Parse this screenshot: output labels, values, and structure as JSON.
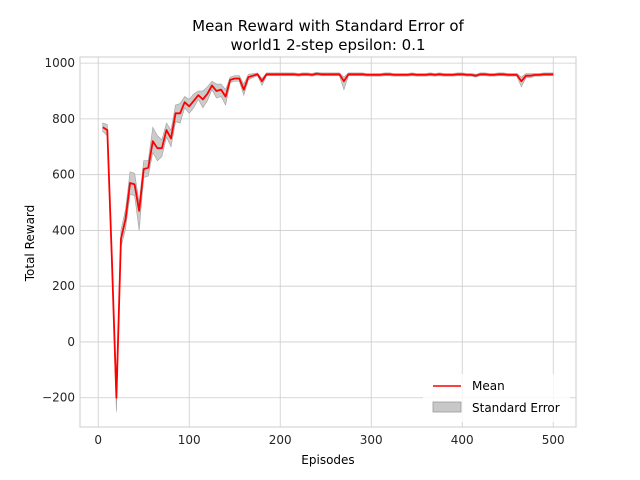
{
  "chart_data": {
    "type": "line",
    "title_line1": "Mean Reward with Standard Error of",
    "title_line2": "world1 2-step epsilon: 0.1",
    "xlabel": "Episodes",
    "ylabel": "Total Reward",
    "xlim": [
      -20,
      525
    ],
    "ylim": [
      -305,
      1022
    ],
    "xticks": [
      0,
      100,
      200,
      300,
      400,
      500
    ],
    "yticks": [
      -200,
      0,
      200,
      400,
      600,
      800,
      1000
    ],
    "xtick_labels": [
      "0",
      "100",
      "200",
      "300",
      "400",
      "500"
    ],
    "ytick_labels": [
      "−200",
      "0",
      "200",
      "400",
      "600",
      "800",
      "1000"
    ],
    "grid": true,
    "legend_position": "lower-right",
    "series": [
      {
        "name": "Mean",
        "color": "#ff0000",
        "x": [
          5,
          10,
          15,
          20,
          25,
          30,
          35,
          40,
          45,
          50,
          55,
          60,
          65,
          70,
          75,
          80,
          85,
          90,
          95,
          100,
          105,
          110,
          115,
          120,
          125,
          130,
          135,
          140,
          145,
          150,
          155,
          160,
          165,
          170,
          175,
          180,
          185,
          190,
          195,
          200,
          205,
          210,
          215,
          220,
          225,
          230,
          235,
          240,
          245,
          250,
          255,
          260,
          265,
          270,
          275,
          280,
          285,
          290,
          295,
          300,
          305,
          310,
          315,
          320,
          325,
          330,
          335,
          340,
          345,
          350,
          355,
          360,
          365,
          370,
          375,
          380,
          385,
          390,
          395,
          400,
          405,
          410,
          415,
          420,
          425,
          430,
          435,
          440,
          445,
          450,
          455,
          460,
          465,
          470,
          475,
          480,
          485,
          490,
          495,
          500
        ],
        "values": [
          770,
          760,
          300,
          -200,
          370,
          440,
          570,
          565,
          470,
          620,
          625,
          720,
          695,
          695,
          760,
          730,
          820,
          820,
          860,
          845,
          865,
          885,
          870,
          890,
          920,
          900,
          905,
          880,
          940,
          945,
          945,
          905,
          950,
          955,
          960,
          935,
          960,
          960,
          960,
          960,
          960,
          960,
          960,
          958,
          960,
          960,
          958,
          962,
          960,
          960,
          960,
          960,
          960,
          935,
          960,
          960,
          960,
          960,
          958,
          958,
          958,
          958,
          960,
          960,
          958,
          958,
          958,
          958,
          960,
          958,
          958,
          958,
          960,
          958,
          960,
          958,
          958,
          958,
          960,
          960,
          958,
          958,
          955,
          960,
          960,
          958,
          958,
          960,
          960,
          958,
          958,
          958,
          935,
          955,
          955,
          958,
          958,
          960,
          960,
          960
        ]
      },
      {
        "name": "Standard Error",
        "color": "#c8c8c8",
        "upper": [
          785,
          780,
          330,
          -170,
          400,
          475,
          610,
          605,
          500,
          650,
          650,
          770,
          740,
          725,
          785,
          760,
          850,
          855,
          880,
          870,
          890,
          900,
          900,
          915,
          935,
          925,
          925,
          905,
          950,
          955,
          955,
          925,
          960,
          962,
          965,
          945,
          965,
          965,
          965,
          965,
          965,
          965,
          965,
          963,
          965,
          965,
          963,
          967,
          965,
          965,
          965,
          965,
          965,
          950,
          965,
          965,
          965,
          965,
          963,
          963,
          963,
          963,
          965,
          965,
          963,
          963,
          963,
          963,
          965,
          963,
          963,
          963,
          965,
          963,
          965,
          963,
          963,
          963,
          965,
          965,
          963,
          963,
          960,
          965,
          965,
          963,
          963,
          965,
          965,
          963,
          963,
          963,
          950,
          962,
          962,
          963,
          963,
          965,
          965,
          965
        ],
        "lower": [
          755,
          740,
          270,
          -250,
          340,
          405,
          530,
          525,
          400,
          590,
          595,
          680,
          650,
          665,
          735,
          700,
          790,
          785,
          840,
          820,
          840,
          870,
          840,
          865,
          905,
          875,
          880,
          850,
          930,
          935,
          935,
          885,
          940,
          948,
          955,
          920,
          955,
          955,
          955,
          955,
          955,
          955,
          955,
          953,
          955,
          955,
          953,
          957,
          955,
          955,
          955,
          955,
          955,
          905,
          955,
          955,
          955,
          955,
          953,
          953,
          953,
          953,
          955,
          955,
          953,
          953,
          953,
          953,
          955,
          953,
          953,
          953,
          955,
          953,
          955,
          953,
          953,
          953,
          955,
          955,
          953,
          953,
          950,
          955,
          955,
          953,
          953,
          955,
          955,
          953,
          953,
          953,
          915,
          948,
          948,
          953,
          953,
          955,
          955,
          955
        ]
      }
    ]
  }
}
